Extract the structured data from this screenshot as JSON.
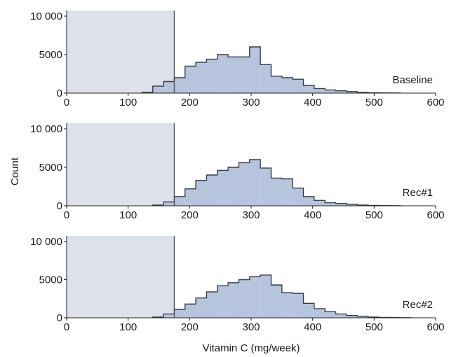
{
  "chart_data": {
    "type": "histogram",
    "xlabel": "Vitamin C (mg/week)",
    "ylabel": "Count",
    "xlim": [
      0,
      600
    ],
    "ylim": [
      0,
      10000
    ],
    "x_ticks": [
      "0",
      "100",
      "200",
      "300",
      "400",
      "500",
      "600"
    ],
    "y_ticks": [
      "0",
      "5000",
      "10 000"
    ],
    "shaded_region": [
      0,
      175
    ],
    "cutoff": 175,
    "bin_width": 17.5,
    "bin_start": 0,
    "colors": {
      "bars": "#b7c4de",
      "bar_edge": "#3a3f48",
      "shade": "#dde1ea",
      "axis": "#222222"
    },
    "panels": [
      {
        "label": "Baseline",
        "counts": [
          0,
          0,
          0,
          0,
          0,
          0,
          0,
          100,
          900,
          1500,
          2000,
          3500,
          4000,
          4400,
          5000,
          4700,
          4700,
          6000,
          3700,
          2200,
          2000,
          1800,
          1000,
          600,
          400,
          300,
          200,
          100,
          50,
          30,
          20,
          0,
          0,
          0
        ]
      },
      {
        "label": "Rec#1",
        "counts": [
          0,
          0,
          0,
          0,
          0,
          0,
          0,
          0,
          100,
          500,
          1200,
          2200,
          3300,
          4000,
          4600,
          5000,
          5600,
          6000,
          4900,
          3600,
          3500,
          2300,
          1200,
          700,
          400,
          300,
          200,
          100,
          50,
          30,
          20,
          0,
          0,
          0
        ]
      },
      {
        "label": "Rec#2",
        "counts": [
          0,
          0,
          0,
          0,
          0,
          0,
          0,
          0,
          100,
          500,
          1100,
          1800,
          2600,
          3400,
          4200,
          4600,
          5000,
          5400,
          5600,
          4300,
          3300,
          3200,
          1900,
          1200,
          800,
          500,
          300,
          200,
          100,
          50,
          30,
          20,
          0,
          0
        ]
      }
    ]
  }
}
